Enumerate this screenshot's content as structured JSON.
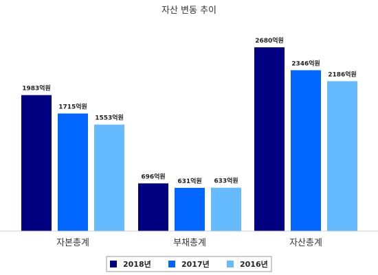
{
  "chart_data": {
    "type": "bar",
    "title": "자산 변동 추이",
    "categories": [
      "자본총계",
      "부채총계",
      "자산총계"
    ],
    "series": [
      {
        "name": "2018년",
        "values": [
          1983,
          696,
          2680
        ],
        "labels": [
          "1983억원",
          "696억원",
          "2680억원"
        ],
        "color": "#000080"
      },
      {
        "name": "2017년",
        "values": [
          1715,
          631,
          2346
        ],
        "labels": [
          "1715억원",
          "631억원",
          "2346억원"
        ],
        "color": "#0066ff"
      },
      {
        "name": "2016년",
        "values": [
          1553,
          633,
          2186
        ],
        "labels": [
          "1553억원",
          "633억원",
          "2186억원"
        ],
        "color": "#66bbff"
      }
    ],
    "ylim": [
      0,
      3000
    ],
    "grid": false,
    "legend": "bottom-center"
  }
}
